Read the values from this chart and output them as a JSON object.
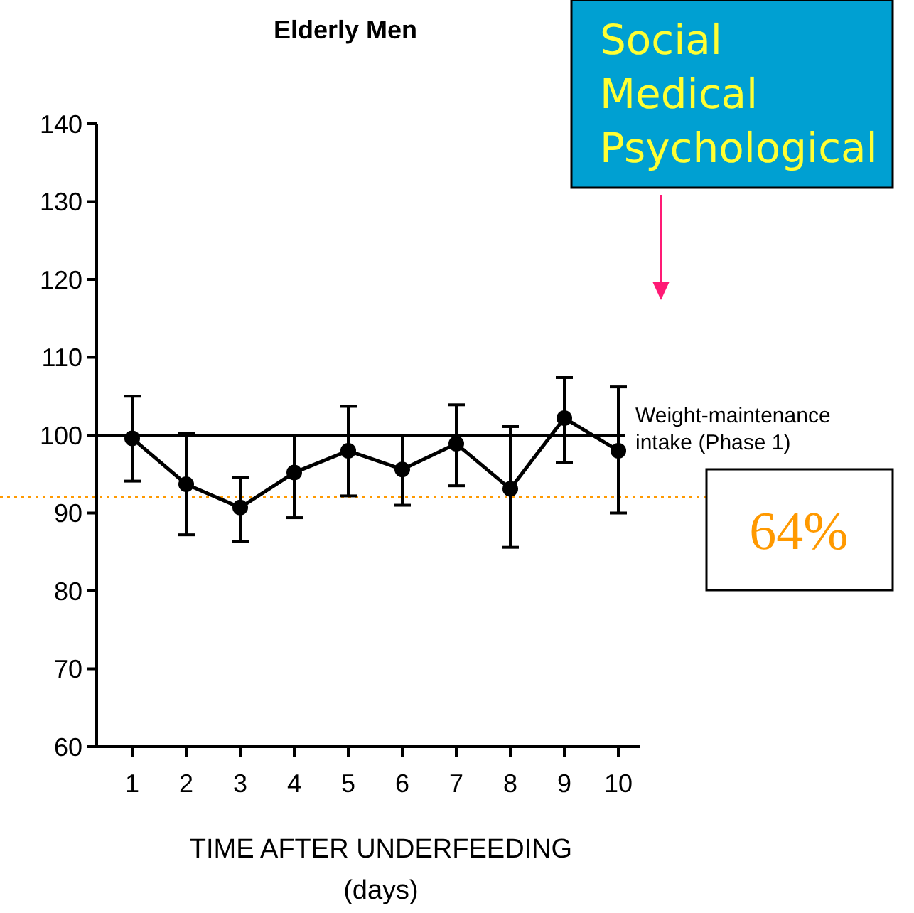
{
  "chart_data": {
    "type": "line",
    "title": "Elderly Men",
    "xlabel": "TIME AFTER UNDERFEEDING\n(days)",
    "categories": [
      "1",
      "2",
      "3",
      "4",
      "5",
      "6",
      "7",
      "8",
      "9",
      "10"
    ],
    "series": [
      {
        "color": "#000000",
        "values": [
          99.6,
          93.7,
          90.7,
          95.2,
          98,
          95.6,
          98.9,
          93.1,
          102.2,
          98
        ],
        "errors": [
          [
            94.1,
            105
          ],
          [
            87.2,
            100.2
          ],
          [
            86.3,
            94.6
          ],
          [
            89.4,
            100
          ],
          [
            92.2,
            103.7
          ],
          [
            91,
            100
          ],
          [
            93.5,
            103.9
          ],
          [
            85.6,
            101.1
          ],
          [
            96.5,
            107.4
          ],
          [
            90,
            106.2
          ]
        ]
      }
    ],
    "ylim": [
      60,
      140
    ],
    "yticks": [
      60,
      70,
      80,
      90,
      100,
      110,
      120,
      130,
      140
    ],
    "marker": "circle",
    "line_style": "solid",
    "grid": false,
    "ref_lines": [
      {
        "axis": "y",
        "value": 100,
        "label": "Weight-maintenance intake (Phase 1)",
        "color": "#000000",
        "line_style": "solid"
      },
      {
        "axis": "y",
        "value": 92,
        "color": "#ff9900",
        "line_style": "dotted"
      }
    ],
    "annotations": [
      "Social\nMedical\nPsychological",
      "64%"
    ]
  }
}
